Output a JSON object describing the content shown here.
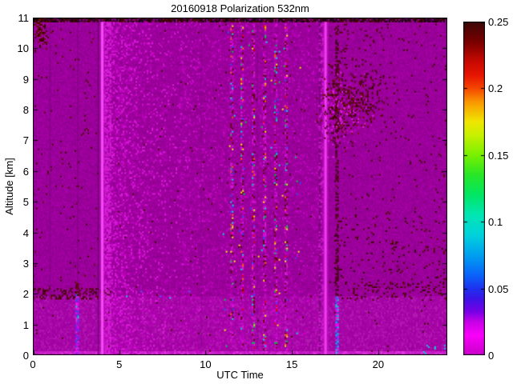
{
  "figure": {
    "background": "#FFFFFF"
  },
  "chart_data": {
    "type": "heatmap",
    "title": "20160918 Polarization 532nm",
    "xlabel": "UTC Time",
    "ylabel": "Altitude [km]",
    "xlim": [
      0,
      24
    ],
    "ylim": [
      0,
      11
    ],
    "xticks": [
      0,
      5,
      10,
      15,
      20
    ],
    "xtick_labels": [
      "0",
      "5",
      "10",
      "15",
      "20"
    ],
    "yticks": [
      0,
      1,
      2,
      3,
      4,
      5,
      6,
      7,
      8,
      9,
      10,
      11
    ],
    "ytick_labels": [
      "0",
      "1",
      "2",
      "3",
      "4",
      "5",
      "6",
      "7",
      "8",
      "9",
      "10",
      "11"
    ],
    "grid": false,
    "colorbar": {
      "lim": [
        0,
        0.25
      ],
      "ticks": [
        0,
        0.05,
        0.1,
        0.15,
        0.2,
        0.25
      ],
      "tick_labels": [
        "0",
        "0.05",
        "0.1",
        "0.15",
        "0.2",
        "0.25"
      ],
      "position": "right",
      "stops": [
        [
          0.0,
          "#C800C8"
        ],
        [
          0.06,
          "#FA00FA"
        ],
        [
          0.1,
          "#C800E6"
        ],
        [
          0.13,
          "#7800E6"
        ],
        [
          0.17,
          "#3C14E6"
        ],
        [
          0.2,
          "#1E32F0"
        ],
        [
          0.24,
          "#0A64FA"
        ],
        [
          0.3,
          "#00A0F0"
        ],
        [
          0.36,
          "#00D2DC"
        ],
        [
          0.42,
          "#00E6B4"
        ],
        [
          0.48,
          "#00E664"
        ],
        [
          0.54,
          "#28E628"
        ],
        [
          0.6,
          "#78F000"
        ],
        [
          0.66,
          "#C8F000"
        ],
        [
          0.7,
          "#F0E600"
        ],
        [
          0.76,
          "#FA9600"
        ],
        [
          0.8,
          "#F54600"
        ],
        [
          0.84,
          "#E61400"
        ],
        [
          0.88,
          "#C80A00"
        ],
        [
          0.94,
          "#780000"
        ],
        [
          1.0,
          "#3C0808"
        ]
      ]
    },
    "noise_seed": 20160918,
    "features": [
      {
        "kind": "fill",
        "color": "#9A009A"
      },
      {
        "kind": "speckle",
        "t": [
          0,
          24
        ],
        "alt": [
          0,
          11
        ],
        "density": 0.5,
        "colors": [
          "#A200A2",
          "#920092",
          "#A700A7",
          "#8E008E"
        ]
      },
      {
        "kind": "rect",
        "t": [
          0,
          24
        ],
        "alt": [
          0,
          1.92
        ],
        "color": "#A706A7",
        "alpha": 1
      },
      {
        "kind": "speckle",
        "t": [
          0,
          24
        ],
        "alt": [
          0,
          1.92
        ],
        "density": 0.5,
        "colors": [
          "#AF10AF",
          "#9F009F",
          "#B41CB4",
          "#A200A2"
        ]
      },
      {
        "kind": "rect",
        "t": [
          0,
          24
        ],
        "alt": [
          0,
          0.13
        ],
        "color": "#C81EC8",
        "alpha": 1
      },
      {
        "kind": "speckle",
        "t": [
          0,
          24
        ],
        "alt": [
          0,
          0.13
        ],
        "density": 0.5,
        "colors": [
          "#E632E6",
          "#D228D2",
          "#BE14BE"
        ]
      },
      {
        "kind": "rect",
        "t": [
          0,
          24
        ],
        "alt": [
          10.86,
          11
        ],
        "color": "#3A003A",
        "alpha": 1
      },
      {
        "kind": "speckle",
        "t": [
          0,
          24
        ],
        "alt": [
          10.86,
          11
        ],
        "density": 0.75,
        "colors": [
          "#3C0000",
          "#140014",
          "#500A00",
          "#8A008A"
        ]
      },
      {
        "kind": "speckle",
        "t": [
          4.0,
          9.8
        ],
        "alt": [
          0,
          10.86
        ],
        "density": 0.6,
        "decay": 0.45,
        "colors": [
          "#C400C4",
          "#D214D2",
          "#B900B9",
          "#E61EE6"
        ]
      },
      {
        "kind": "speckle",
        "t": [
          8.5,
          16.6
        ],
        "alt": [
          0,
          10.86
        ],
        "density": 0.12,
        "colors": [
          "#C000C0",
          "#B400B4",
          "#CB0BCB"
        ]
      },
      {
        "kind": "speckle",
        "t": [
          0,
          3.85
        ],
        "alt": [
          1.9,
          10.8
        ],
        "density": 0.014,
        "colors": [
          "#460000",
          "#5A0F00"
        ]
      },
      {
        "kind": "speckle",
        "t": [
          0,
          24
        ],
        "alt": [
          0.15,
          10.8
        ],
        "density": 0.005,
        "colors": [
          "#460000",
          "#3C0000"
        ]
      },
      {
        "kind": "speckle",
        "t": [
          0,
          4.35
        ],
        "alt": [
          1.86,
          2.18
        ],
        "density": 0.3,
        "colors": [
          "#3C0000",
          "#500A00"
        ]
      },
      {
        "kind": "blob",
        "t": 0.33,
        "alt": 10.5,
        "rt": 0.42,
        "ra": 0.4,
        "density": 0.6,
        "colors": [
          "#3C0000",
          "#641400",
          "#500000"
        ]
      },
      {
        "kind": "vband",
        "t": 1.0,
        "width": 2,
        "alt": [
          1.9,
          10.86
        ],
        "color": "#6E006E",
        "alpha": 0.3
      },
      {
        "kind": "vband",
        "t": 2.6,
        "width": 2,
        "alt": [
          1.9,
          10.86
        ],
        "color": "#6E006E",
        "alpha": 0.3
      },
      {
        "kind": "vband",
        "t": 9.75,
        "width": 2,
        "alt": [
          0.2,
          10.86
        ],
        "color": "#6E006E",
        "alpha": 0.25
      },
      {
        "kind": "vband",
        "t": 13.0,
        "width": 2,
        "alt": [
          0.2,
          10.86
        ],
        "color": "#6E006E",
        "alpha": 0.25
      },
      {
        "kind": "vdots",
        "t": 11.5,
        "width": 3,
        "alt": [
          0.2,
          10.8
        ],
        "density": 0.38,
        "colors": [
          "#CC10CC",
          "#D820D8",
          "#C400C4",
          "#5A0000"
        ]
      },
      {
        "kind": "vdots",
        "t": 11.5,
        "width": 3,
        "alt": [
          0.2,
          10.8
        ],
        "density": 0.11,
        "colors": [
          "#00DCDC",
          "#2850FF",
          "#F0F000",
          "#00C850",
          "#FF6400",
          "#FF00FF",
          "#E60000"
        ]
      },
      {
        "kind": "vdots",
        "t": 12.1,
        "width": 3,
        "alt": [
          0.2,
          10.8
        ],
        "density": 0.38,
        "colors": [
          "#CC10CC",
          "#D820D8",
          "#C400C4",
          "#5A0000"
        ]
      },
      {
        "kind": "vdots",
        "t": 12.1,
        "width": 3,
        "alt": [
          0.2,
          10.8
        ],
        "density": 0.11,
        "colors": [
          "#00DCDC",
          "#2850FF",
          "#F0F000",
          "#00C850",
          "#FF6400",
          "#FF00FF",
          "#E60000"
        ]
      },
      {
        "kind": "vdots",
        "t": 12.75,
        "width": 3,
        "alt": [
          0.2,
          10.8
        ],
        "density": 0.38,
        "colors": [
          "#CC10CC",
          "#D820D8",
          "#C400C4",
          "#5A0000"
        ]
      },
      {
        "kind": "vdots",
        "t": 12.75,
        "width": 3,
        "alt": [
          0.2,
          10.8
        ],
        "density": 0.11,
        "colors": [
          "#00DCDC",
          "#2850FF",
          "#F0F000",
          "#00C850",
          "#FF6400",
          "#FF00FF",
          "#E60000"
        ]
      },
      {
        "kind": "vdots",
        "t": 13.4,
        "width": 3,
        "alt": [
          0.2,
          10.8
        ],
        "density": 0.38,
        "colors": [
          "#CC10CC",
          "#D820D8",
          "#C400C4",
          "#5A0000"
        ]
      },
      {
        "kind": "vdots",
        "t": 13.4,
        "width": 3,
        "alt": [
          0.2,
          10.8
        ],
        "density": 0.11,
        "colors": [
          "#00DCDC",
          "#2850FF",
          "#F0F000",
          "#00C850",
          "#FF6400",
          "#FF00FF",
          "#E60000"
        ]
      },
      {
        "kind": "vdots",
        "t": 14.05,
        "width": 3,
        "alt": [
          0.2,
          10.8
        ],
        "density": 0.38,
        "colors": [
          "#CC10CC",
          "#D820D8",
          "#C400C4",
          "#5A0000"
        ]
      },
      {
        "kind": "vdots",
        "t": 14.05,
        "width": 3,
        "alt": [
          0.2,
          10.8
        ],
        "density": 0.11,
        "colors": [
          "#00DCDC",
          "#2850FF",
          "#F0F000",
          "#00C850",
          "#FF6400",
          "#FF00FF",
          "#E60000"
        ]
      },
      {
        "kind": "vdots",
        "t": 14.65,
        "width": 3,
        "alt": [
          0.2,
          10.8
        ],
        "density": 0.38,
        "colors": [
          "#CC10CC",
          "#D820D8",
          "#C400C4",
          "#5A0000"
        ]
      },
      {
        "kind": "vdots",
        "t": 14.65,
        "width": 3,
        "alt": [
          0.2,
          10.8
        ],
        "density": 0.11,
        "colors": [
          "#00DCDC",
          "#2850FF",
          "#F0F000",
          "#00C850",
          "#FF6400",
          "#FF00FF",
          "#E60000"
        ]
      },
      {
        "kind": "speckle",
        "t": [
          10.8,
          15.5
        ],
        "alt": [
          0.3,
          10.8
        ],
        "density": 0.006,
        "colors": [
          "#00DCDC",
          "#2850FF",
          "#F0F000",
          "#00C850"
        ]
      },
      {
        "kind": "vband",
        "t": 3.8,
        "width": 2,
        "alt": [
          0,
          10.86
        ],
        "color": "#5F005F",
        "alpha": 0.55
      },
      {
        "kind": "vband",
        "t": 4.02,
        "width": 6,
        "alt": [
          0,
          10.86
        ],
        "color": "#CC16CC",
        "alpha": 0.65
      },
      {
        "kind": "vband",
        "t": 4.02,
        "width": 3,
        "alt": [
          0,
          10.86
        ],
        "color": "#F24BF2",
        "alpha": 1
      },
      {
        "kind": "vdots",
        "t": 4.35,
        "width": 8,
        "alt": [
          0,
          10.86
        ],
        "density": 0.45,
        "colors": [
          "#DC28DC",
          "#CF1CCF"
        ]
      },
      {
        "kind": "vband",
        "t": 16.62,
        "width": 2,
        "alt": [
          0,
          10.86
        ],
        "color": "#5F005F",
        "alpha": 0.5
      },
      {
        "kind": "vband",
        "t": 16.95,
        "width": 7,
        "alt": [
          0,
          10.86
        ],
        "color": "#C812C8",
        "alpha": 0.6
      },
      {
        "kind": "vband",
        "t": 16.95,
        "width": 3,
        "alt": [
          0,
          10.86
        ],
        "color": "#EE3CEE",
        "alpha": 1
      },
      {
        "kind": "vdots",
        "t": 16.7,
        "width": 6,
        "alt": [
          0,
          10.86
        ],
        "density": 0.3,
        "colors": [
          "#C814C8",
          "#D422D4"
        ]
      },
      {
        "kind": "vdots",
        "t": 17.62,
        "width": 4,
        "alt": [
          1.9,
          10.7
        ],
        "density": 0.5,
        "colors": [
          "#3C0000",
          "#500A00",
          "#2D0000"
        ]
      },
      {
        "kind": "blob",
        "t": 18.0,
        "alt": 8.1,
        "rt": 1.15,
        "ra": 0.8,
        "density": 0.5,
        "colors": [
          "#3C0000",
          "#550D00",
          "#C800C8",
          "#E61EE6",
          "#6E1400"
        ]
      },
      {
        "kind": "blob",
        "t": 17.35,
        "alt": 7.7,
        "rt": 0.5,
        "ra": 0.75,
        "density": 0.45,
        "colors": [
          "#E61EE6",
          "#C800C8",
          "#3C0000"
        ]
      },
      {
        "kind": "blob",
        "t": 19.25,
        "alt": 8.5,
        "rt": 0.8,
        "ra": 0.55,
        "density": 0.28,
        "colors": [
          "#3C0000",
          "#500A00"
        ]
      },
      {
        "kind": "speckle",
        "t": [
          17.1,
          20.3
        ],
        "alt": [
          8.8,
          10.8
        ],
        "density": 0.04,
        "colors": [
          "#460000"
        ]
      },
      {
        "kind": "speckle",
        "t": [
          17.45,
          24
        ],
        "alt": [
          2.0,
          4.8
        ],
        "density": 0.05,
        "colors": [
          "#460000",
          "#550A00",
          "#320000"
        ]
      },
      {
        "kind": "speckle",
        "t": [
          17.45,
          24
        ],
        "alt": [
          4.8,
          10.8
        ],
        "density": 0.018,
        "colors": [
          "#460000"
        ]
      },
      {
        "kind": "speckle",
        "t": [
          17.8,
          24
        ],
        "alt": [
          1.78,
          2.4
        ],
        "density": 0.13,
        "colors": [
          "#3C0000",
          "#500A00"
        ]
      },
      {
        "kind": "speckle",
        "t": [
          4,
          24
        ],
        "alt": [
          1.85,
          2.1
        ],
        "density": 0.01,
        "colors": [
          "#00DCDC",
          "#3264FF"
        ]
      },
      {
        "kind": "vdots",
        "t": 2.55,
        "width": 3,
        "alt": [
          0.06,
          2.02
        ],
        "density": 0.85,
        "colors": [
          "#2850FF",
          "#00DCDC",
          "#FF00FF",
          "#8C14FF",
          "#E632E6",
          "#B414E6"
        ]
      },
      {
        "kind": "vdots",
        "t": 2.55,
        "width": 3,
        "alt": [
          1.95,
          2.35
        ],
        "density": 0.75,
        "colors": [
          "#3C0000",
          "#640A00"
        ]
      },
      {
        "kind": "vdots",
        "t": 17.6,
        "width": 3,
        "alt": [
          0.06,
          1.92
        ],
        "density": 0.85,
        "colors": [
          "#2850FF",
          "#00DCDC",
          "#FF00FF",
          "#3264FF",
          "#E632E6"
        ]
      },
      {
        "kind": "speckle",
        "t": [
          22.6,
          24
        ],
        "alt": [
          0.05,
          0.5
        ],
        "density": 0.07,
        "colors": [
          "#00DCDC",
          "#28B4FF"
        ]
      }
    ]
  }
}
